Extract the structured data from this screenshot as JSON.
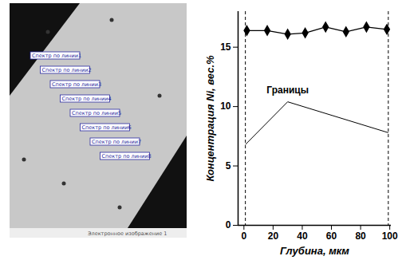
{
  "chart_data": {
    "type": "line",
    "x_label": "Глубина, мкм",
    "y_label": "Концентрация Ni, вес.%",
    "x": [
      2,
      16,
      30,
      42,
      56,
      70,
      84,
      98
    ],
    "series": [
      {
        "name": "Ni",
        "color": "#000000",
        "marker": "diamond",
        "line_style": "solid",
        "values": [
          16.4,
          16.4,
          16.1,
          16.2,
          16.7,
          16.3,
          16.7,
          16.5
        ]
      }
    ],
    "xlim": [
      -4,
      101
    ],
    "xticks": [
      0,
      20,
      40,
      60,
      80,
      100
    ],
    "ylim": [
      0,
      18
    ],
    "yticks": [
      0,
      5,
      10,
      15
    ],
    "grid": false,
    "boundaries": [
      1,
      99
    ],
    "annotation": {
      "text": "Границы",
      "x": 30,
      "y": 11,
      "targets": [
        [
          1,
          6.8
        ],
        [
          99,
          7.8
        ]
      ]
    }
  },
  "micrograph": {
    "labels": [
      "Спектр по линии1",
      "Спектр по линии2",
      "Спектр по линии3",
      "Спектр по линии4",
      "Спектр по линии5",
      "Спектр по линии6",
      "Спектр по линии7",
      "Спектр по линии8"
    ],
    "caption": "Электронное изображение 1"
  }
}
